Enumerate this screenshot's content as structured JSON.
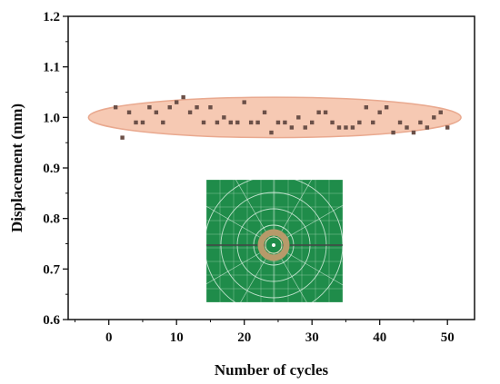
{
  "chart_data": {
    "type": "scatter",
    "xlabel": "Number of cycles",
    "ylabel": "Displacement (mm)",
    "xlim": [
      -6,
      54
    ],
    "ylim": [
      0.6,
      1.2
    ],
    "x_ticks": [
      0,
      10,
      20,
      30,
      40,
      50
    ],
    "x_tick_labels": [
      "0",
      "10",
      "20",
      "30",
      "40",
      "50"
    ],
    "y_ticks": [
      0.6,
      0.7,
      0.8,
      0.9,
      1.0,
      1.1,
      1.2
    ],
    "y_tick_labels": [
      "0.6",
      "0.7",
      "0.8",
      "0.9",
      "1.0",
      "1.1",
      "1.2"
    ],
    "grid": false,
    "series": [
      {
        "marker": "square",
        "color": "#6b5048",
        "x": [
          1,
          2,
          3,
          4,
          5,
          6,
          7,
          8,
          9,
          10,
          11,
          12,
          13,
          14,
          15,
          16,
          17,
          18,
          19,
          20,
          21,
          22,
          23,
          24,
          25,
          26,
          27,
          28,
          29,
          30,
          31,
          32,
          33,
          34,
          35,
          36,
          37,
          38,
          39,
          40,
          41,
          42,
          43,
          44,
          45,
          46,
          47,
          48,
          49,
          50
        ],
        "y": [
          1.02,
          0.96,
          1.01,
          0.99,
          0.99,
          1.02,
          1.01,
          0.99,
          1.02,
          1.03,
          1.04,
          1.01,
          1.02,
          0.99,
          1.02,
          0.99,
          1.0,
          0.99,
          0.99,
          1.03,
          0.99,
          0.99,
          1.01,
          0.97,
          0.99,
          0.99,
          0.98,
          1.0,
          0.98,
          0.99,
          1.01,
          1.01,
          0.99,
          0.98,
          0.98,
          0.98,
          0.99,
          1.02,
          0.99,
          1.01,
          1.02,
          0.97,
          0.99,
          0.98,
          0.97,
          0.99,
          0.98,
          1.0,
          1.01,
          0.98
        ]
      }
    ],
    "highlight_ellipse": {
      "center": [
        24.5,
        1.0
      ],
      "x_radius": 27.5,
      "y_radius": 0.04,
      "fill": "#f6c9b3",
      "stroke": "#e9a98f"
    },
    "inset_image": {
      "icon": "green-cutting-mat-with-ring-specimen",
      "background": "#1f8c4a",
      "line_color": "#d8f0e0",
      "ring_color": "#b79a6a"
    }
  }
}
